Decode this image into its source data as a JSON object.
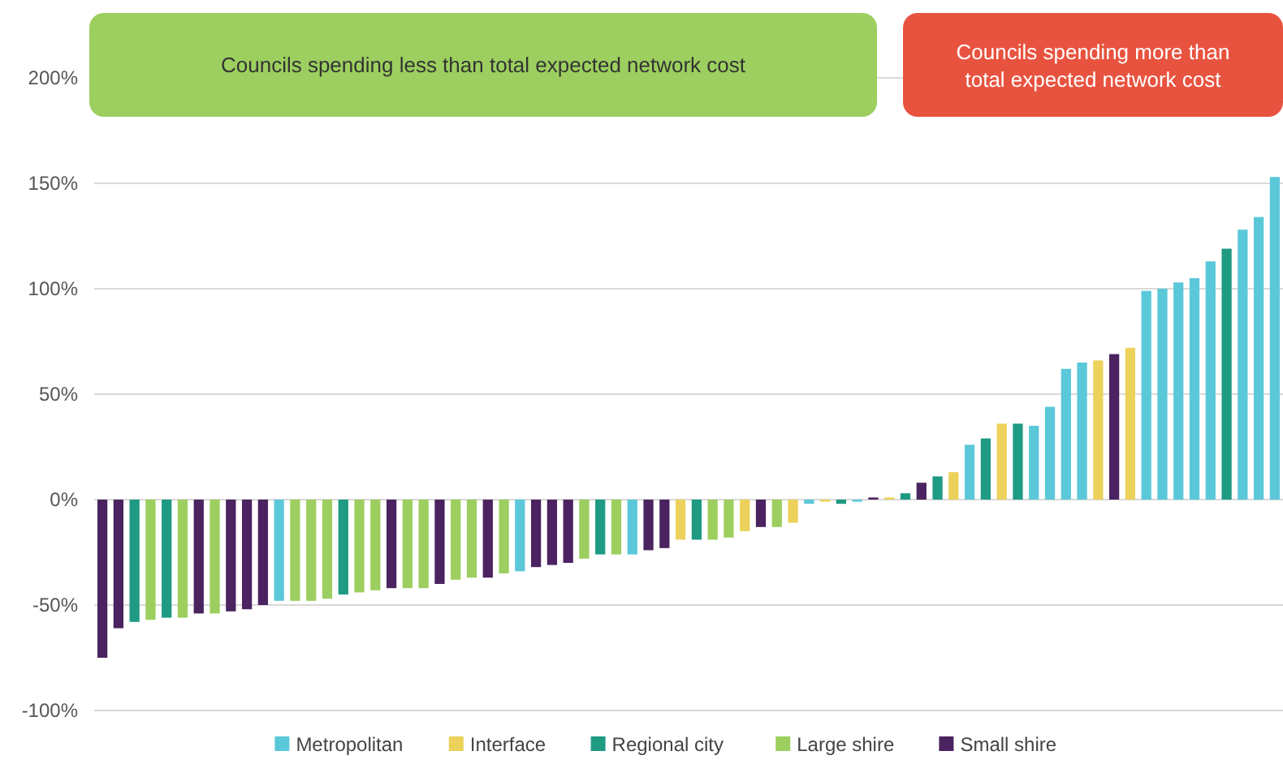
{
  "chart_data": {
    "type": "bar",
    "grid": "y",
    "legend": "bottom",
    "annotations": [
      "Councils spending less than total expected network cost",
      "Councils spending more than total expected network cost"
    ],
    "categories": [
      null,
      null,
      null,
      null,
      null,
      null,
      null,
      null,
      null,
      null,
      null,
      null,
      null,
      null,
      null,
      null,
      null,
      null,
      null,
      null,
      null,
      null,
      null,
      null,
      null,
      null,
      null,
      null,
      null,
      null,
      null,
      null,
      null,
      null,
      null,
      null,
      null,
      null,
      null,
      null,
      null,
      null,
      null,
      null,
      null,
      null,
      null,
      null,
      null,
      null,
      null,
      null,
      null,
      null,
      null,
      null,
      null,
      null,
      null,
      null,
      null,
      null,
      null,
      null,
      null,
      null,
      null,
      null,
      null,
      null,
      null,
      null,
      null,
      null
    ],
    "ylim": [
      -100,
      200
    ],
    "yticks": [
      {
        "value": -100,
        "label": "-100%"
      },
      {
        "value": -50,
        "label": "-50%"
      },
      {
        "value": 0,
        "label": "0%"
      },
      {
        "value": 50,
        "label": "50%"
      },
      {
        "value": 100,
        "label": "100%"
      },
      {
        "value": 150,
        "label": "150%"
      },
      {
        "value": 200,
        "label": "200%"
      }
    ],
    "series": [
      {
        "name": "Metropolitan",
        "color": "#5bc8d9",
        "values": [
          null,
          null,
          null,
          null,
          null,
          null,
          null,
          null,
          null,
          null,
          null,
          -48,
          null,
          null,
          null,
          null,
          null,
          null,
          null,
          null,
          null,
          null,
          null,
          null,
          null,
          null,
          -34,
          null,
          null,
          null,
          null,
          null,
          null,
          -26,
          null,
          null,
          null,
          null,
          null,
          null,
          null,
          null,
          null,
          null,
          -2,
          null,
          null,
          -1,
          null,
          null,
          null,
          null,
          null,
          null,
          26,
          null,
          null,
          null,
          35,
          44,
          62,
          65,
          null,
          null,
          null,
          99,
          100,
          103,
          105,
          113,
          null,
          128,
          134,
          153
        ]
      },
      {
        "name": "Interface",
        "color": "#ecd25a",
        "values": [
          null,
          null,
          null,
          null,
          null,
          null,
          null,
          null,
          null,
          null,
          null,
          null,
          null,
          null,
          null,
          null,
          null,
          null,
          null,
          null,
          null,
          null,
          null,
          null,
          null,
          null,
          null,
          null,
          null,
          null,
          null,
          null,
          null,
          null,
          null,
          null,
          -19,
          null,
          null,
          null,
          -15,
          null,
          null,
          -11,
          null,
          -1,
          null,
          null,
          null,
          1,
          null,
          null,
          null,
          13,
          null,
          null,
          36,
          null,
          null,
          null,
          null,
          null,
          66,
          null,
          72,
          null,
          null,
          null,
          null,
          null,
          null,
          null,
          null,
          null
        ]
      },
      {
        "name": "Regional city",
        "color": "#1f9a83",
        "values": [
          null,
          null,
          -58,
          null,
          -56,
          null,
          null,
          null,
          null,
          null,
          null,
          null,
          null,
          null,
          null,
          -45,
          null,
          null,
          null,
          null,
          null,
          null,
          null,
          null,
          null,
          null,
          null,
          null,
          null,
          null,
          null,
          -26,
          null,
          null,
          null,
          null,
          null,
          -19,
          null,
          null,
          null,
          null,
          null,
          null,
          null,
          null,
          -2,
          null,
          null,
          null,
          3,
          null,
          11,
          null,
          null,
          29,
          null,
          36,
          null,
          null,
          null,
          null,
          null,
          null,
          null,
          null,
          null,
          null,
          null,
          null,
          119,
          null,
          null,
          null
        ]
      },
      {
        "name": "Large shire",
        "color": "#9ccf5f",
        "values": [
          null,
          null,
          null,
          -57,
          null,
          -56,
          null,
          -54,
          null,
          null,
          null,
          null,
          -48,
          -48,
          -47,
          null,
          -44,
          -43,
          null,
          -42,
          -42,
          null,
          -38,
          -37,
          null,
          -35,
          null,
          null,
          null,
          null,
          -28,
          null,
          -26,
          null,
          null,
          null,
          null,
          null,
          -19,
          -18,
          null,
          null,
          -13,
          null,
          null,
          null,
          null,
          null,
          null,
          null,
          null,
          null,
          null,
          null,
          null,
          null,
          null,
          null,
          null,
          null,
          null,
          null,
          null,
          null,
          null,
          null,
          null,
          null,
          null,
          null,
          null,
          null,
          null,
          null
        ]
      },
      {
        "name": "Small shire",
        "color": "#4b2360",
        "values": [
          -75,
          -61,
          null,
          null,
          null,
          null,
          -54,
          null,
          -53,
          -52,
          -50,
          null,
          null,
          null,
          null,
          null,
          null,
          null,
          -42,
          null,
          null,
          -40,
          null,
          null,
          -37,
          null,
          null,
          -32,
          -31,
          -30,
          null,
          null,
          null,
          null,
          -24,
          -23,
          null,
          null,
          null,
          null,
          null,
          -13,
          null,
          null,
          null,
          null,
          null,
          null,
          1,
          null,
          null,
          8,
          null,
          null,
          null,
          null,
          null,
          null,
          null,
          null,
          null,
          null,
          null,
          69,
          null,
          null,
          null,
          null,
          null,
          null,
          null,
          null,
          null,
          null
        ]
      }
    ]
  }
}
